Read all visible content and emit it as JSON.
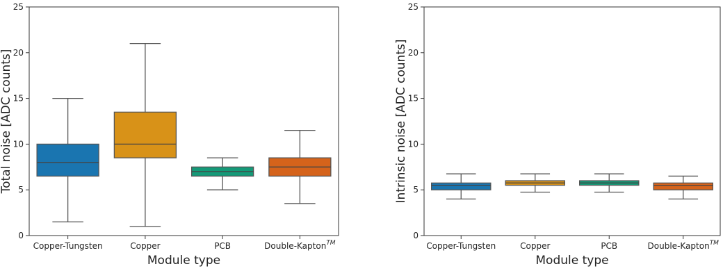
{
  "chart_data": [
    {
      "type": "box",
      "xlabel": "Module type",
      "ylabel": "Total noise [ADC counts]",
      "ylim": [
        0,
        25
      ],
      "yticks": [
        "0",
        "5",
        "10",
        "15",
        "20",
        "25"
      ],
      "categories": [
        "Copper-Tungsten",
        "Copper",
        "PCB",
        "Double-Kapton"
      ],
      "category_superscripts": [
        "",
        "",
        "",
        "TM"
      ],
      "grid": false,
      "boxes": [
        {
          "whisker_low": 1.5,
          "q1": 6.5,
          "median": 8.0,
          "q3": 10.0,
          "whisker_high": 15.0,
          "color": "#1a75b0"
        },
        {
          "whisker_low": 1.0,
          "q1": 8.5,
          "median": 10.0,
          "q3": 13.5,
          "whisker_high": 21.0,
          "color": "#d89218"
        },
        {
          "whisker_low": 5.0,
          "q1": 6.5,
          "median": 7.0,
          "q3": 7.5,
          "whisker_high": 8.5,
          "color": "#149a78"
        },
        {
          "whisker_low": 3.5,
          "q1": 6.5,
          "median": 7.5,
          "q3": 8.5,
          "whisker_high": 11.5,
          "color": "#d5631b"
        }
      ]
    },
    {
      "type": "box",
      "xlabel": "Module type",
      "ylabel": "Intrinsic noise [ADC counts]",
      "ylim": [
        0,
        25
      ],
      "yticks": [
        "0",
        "5",
        "10",
        "15",
        "20",
        "25"
      ],
      "categories": [
        "Copper-Tungsten",
        "Copper",
        "PCB",
        "Double-Kapton"
      ],
      "category_superscripts": [
        "",
        "",
        "",
        "TM"
      ],
      "grid": false,
      "boxes": [
        {
          "whisker_low": 4.0,
          "q1": 5.0,
          "median": 5.5,
          "q3": 5.75,
          "whisker_high": 6.75,
          "color": "#1a75b0"
        },
        {
          "whisker_low": 4.75,
          "q1": 5.5,
          "median": 5.75,
          "q3": 6.0,
          "whisker_high": 6.75,
          "color": "#d89218"
        },
        {
          "whisker_low": 4.75,
          "q1": 5.5,
          "median": 5.75,
          "q3": 6.0,
          "whisker_high": 6.75,
          "color": "#149a78"
        },
        {
          "whisker_low": 4.0,
          "q1": 5.0,
          "median": 5.5,
          "q3": 5.75,
          "whisker_high": 6.5,
          "color": "#d5631b"
        }
      ]
    }
  ]
}
